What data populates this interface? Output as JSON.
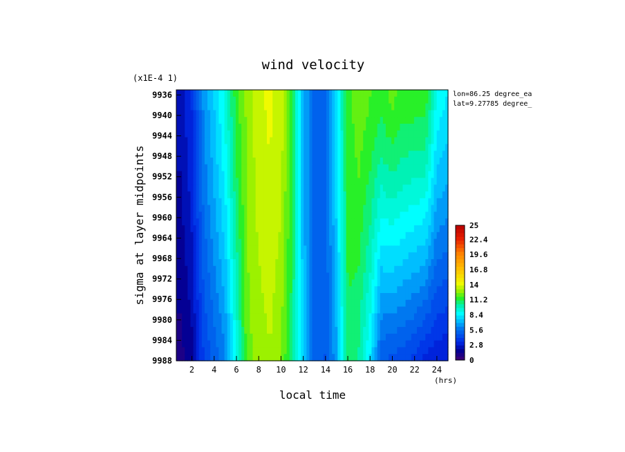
{
  "chart_data": {
    "type": "heatmap",
    "title": "wind velocity",
    "xlabel": "local time",
    "ylabel": "sigma at layer midpoints",
    "x_unit": "(hrs)",
    "y_scale_note": "(x1E-4 1)",
    "annotations": [
      "lon=86.25 degree_ea",
      "lat=9.27785 degree_"
    ],
    "x_ticks": [
      "2",
      "4",
      "6",
      "8",
      "10",
      "12",
      "14",
      "16",
      "18",
      "20",
      "22",
      "24"
    ],
    "y_ticks": [
      "9936",
      "9940",
      "9944",
      "9948",
      "9952",
      "9956",
      "9960",
      "9964",
      "9968",
      "9972",
      "9976",
      "9980",
      "9984",
      "9988"
    ],
    "xlim": [
      0.6,
      25.0
    ],
    "ylim": [
      9988,
      9935
    ],
    "colorbar_ticks": [
      "0",
      "2.8",
      "5.6",
      "8.4",
      "11.2",
      "14",
      "16.8",
      "19.6",
      "22.4",
      "25"
    ],
    "colorbar_range": [
      0,
      25
    ],
    "x": [
      1,
      2,
      3,
      4,
      5,
      6,
      7,
      8,
      9,
      10,
      11,
      12,
      13,
      14,
      15,
      16,
      17,
      18,
      19,
      20,
      21,
      22,
      23,
      24,
      25
    ],
    "profiles": {
      "top_sigma": 9935,
      "bottom_sigma": 9988,
      "top_values": [
        2,
        3.2,
        6,
        7.4,
        9,
        11.3,
        12.5,
        13.5,
        13.8,
        13.4,
        11.2,
        6.8,
        4.8,
        5.2,
        8,
        11.3,
        12,
        11.6,
        11.2,
        11.8,
        11.3,
        11.3,
        11.3,
        8.6,
        8
      ],
      "bottom_values": [
        0.8,
        1.5,
        3.7,
        4.8,
        5.8,
        8.8,
        12,
        12.5,
        12.9,
        12.2,
        10.4,
        7.2,
        5,
        4.5,
        6.5,
        10.7,
        10,
        8,
        4.6,
        4.3,
        4.1,
        3.6,
        2.9,
        2.5,
        2.5
      ]
    }
  }
}
